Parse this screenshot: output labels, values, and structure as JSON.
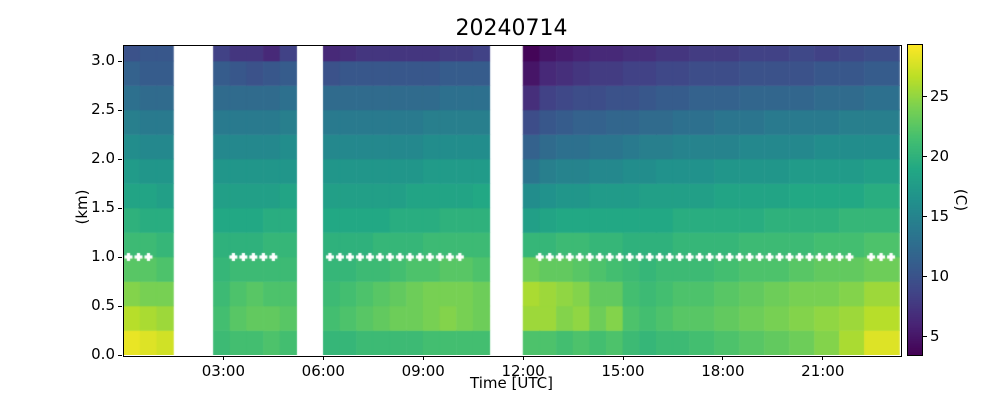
{
  "title": "20240714",
  "axes": {
    "xlabel": "Time [UTC]",
    "ylabel": "(km)",
    "x_ticks": [
      {
        "hour": 3,
        "label": "03:00"
      },
      {
        "hour": 6,
        "label": "06:00"
      },
      {
        "hour": 9,
        "label": "09:00"
      },
      {
        "hour": 12,
        "label": "12:00"
      },
      {
        "hour": 15,
        "label": "15:00"
      },
      {
        "hour": 18,
        "label": "18:00"
      },
      {
        "hour": 21,
        "label": "21:00"
      }
    ],
    "y_ticks": [
      {
        "km": 0.0,
        "label": "0.0"
      },
      {
        "km": 0.5,
        "label": "0.5"
      },
      {
        "km": 1.0,
        "label": "1.0"
      },
      {
        "km": 1.5,
        "label": "1.5"
      },
      {
        "km": 2.0,
        "label": "2.0"
      },
      {
        "km": 2.5,
        "label": "2.5"
      },
      {
        "km": 3.0,
        "label": "3.0"
      }
    ],
    "x_range_hours": [
      0,
      23.3
    ],
    "y_range_km": [
      0,
      3.163
    ]
  },
  "colorbar": {
    "label": "(C)",
    "ticks": [
      {
        "c": 5,
        "label": "5"
      },
      {
        "c": 10,
        "label": "10"
      },
      {
        "c": 15,
        "label": "15"
      },
      {
        "c": 20,
        "label": "20"
      },
      {
        "c": 25,
        "label": "25"
      }
    ],
    "vmin": 3.5,
    "vmax": 29.3,
    "colormap": "viridis",
    "stops": [
      "#440154",
      "#482475",
      "#414487",
      "#355f8d",
      "#2a788e",
      "#21918c",
      "#22a884",
      "#44bf70",
      "#7ad151",
      "#bddf26",
      "#fde725"
    ]
  },
  "chart_data": {
    "type": "heatmap",
    "title": "20240714",
    "xlabel": "Time [UTC]",
    "ylabel": "(km)",
    "value_unit": "C",
    "grid": "off",
    "legend": "colorbar-right",
    "z_bottom_edges_km": [
      0.0,
      0.25,
      0.5,
      0.75,
      1.0,
      1.25,
      1.5,
      1.75,
      2.0,
      2.25,
      2.5,
      2.75,
      3.0
    ],
    "row_height_km": 0.25,
    "z_top_km": 3.163,
    "gaps_hours": [
      [
        1.5,
        2.7
      ],
      [
        5.2,
        6.0
      ],
      [
        11.0,
        12.0
      ]
    ],
    "columns": [
      {
        "t0": 0.0,
        "t1": 0.5,
        "T": [
          28.5,
          26.5,
          24.5,
          22.5,
          21,
          20,
          18.5,
          17.5,
          16,
          14.5,
          13,
          11.5,
          10
        ]
      },
      {
        "t0": 0.5,
        "t1": 1.0,
        "T": [
          28,
          26,
          24,
          22.5,
          21,
          19.5,
          18.5,
          17,
          15.5,
          14,
          12.5,
          11,
          10.5
        ]
      },
      {
        "t0": 1.0,
        "t1": 1.5,
        "T": [
          27.5,
          25.5,
          24,
          22,
          20.5,
          19.5,
          18,
          17,
          15.5,
          14,
          12.5,
          11,
          10.5
        ]
      },
      {
        "t0": 2.7,
        "t1": 3.2,
        "T": [
          21,
          21.5,
          21,
          20.5,
          20,
          19,
          18,
          17,
          15.5,
          14,
          12.5,
          11,
          8.5
        ]
      },
      {
        "t0": 3.2,
        "t1": 3.7,
        "T": [
          21.5,
          22.5,
          22,
          21,
          20,
          19,
          18,
          17,
          15.5,
          14,
          12.5,
          10.5,
          7.5
        ]
      },
      {
        "t0": 3.7,
        "t1": 4.2,
        "T": [
          21.5,
          23,
          22.5,
          21,
          20,
          19,
          18,
          17,
          15.5,
          14,
          12.5,
          10,
          7.5
        ]
      },
      {
        "t0": 4.2,
        "t1": 4.7,
        "T": [
          22,
          23,
          22,
          21,
          20.5,
          19.5,
          18,
          17,
          15.5,
          14,
          12.5,
          10.5,
          6.5
        ]
      },
      {
        "t0": 4.7,
        "t1": 5.2,
        "T": [
          21.5,
          22.5,
          22,
          21,
          20.5,
          19.5,
          18.5,
          17,
          16,
          14.5,
          13,
          11,
          8.5
        ]
      },
      {
        "t0": 6.0,
        "t1": 6.5,
        "T": [
          20.5,
          21.5,
          21,
          20.5,
          20,
          19,
          18,
          17,
          15.5,
          14,
          12.5,
          10,
          6.5
        ]
      },
      {
        "t0": 6.5,
        "t1": 7.0,
        "T": [
          20.5,
          22,
          21.5,
          20.5,
          20,
          19,
          18,
          17,
          15.5,
          14,
          12.5,
          10.5,
          7
        ]
      },
      {
        "t0": 7.0,
        "t1": 7.5,
        "T": [
          21,
          22.5,
          22,
          21,
          20,
          19,
          18,
          17,
          15.5,
          14,
          12.5,
          10.5,
          7.5
        ]
      },
      {
        "t0": 7.5,
        "t1": 8.0,
        "T": [
          21,
          23,
          22.5,
          21,
          20.5,
          19,
          18,
          17,
          15.5,
          14,
          12.5,
          10.5,
          7.5
        ]
      },
      {
        "t0": 8.0,
        "t1": 8.5,
        "T": [
          21,
          23.5,
          23,
          21.5,
          20.5,
          19.5,
          18,
          17,
          15.5,
          14,
          12.5,
          10.5,
          7.5
        ]
      },
      {
        "t0": 8.5,
        "t1": 9.0,
        "T": [
          21,
          23.5,
          23.5,
          22,
          20.5,
          19.5,
          18.5,
          17,
          15.5,
          14,
          12.5,
          10.5,
          7.5
        ]
      },
      {
        "t0": 9.0,
        "t1": 9.5,
        "T": [
          21.5,
          24,
          24,
          22,
          21,
          19.5,
          18.5,
          17.5,
          16,
          14.5,
          12.5,
          10.5,
          7.5
        ]
      },
      {
        "t0": 9.5,
        "t1": 10.0,
        "T": [
          21.5,
          24.5,
          24,
          22.5,
          21,
          20,
          18.5,
          17.5,
          16,
          14.5,
          13,
          11,
          8
        ]
      },
      {
        "t0": 10.0,
        "t1": 10.5,
        "T": [
          21.5,
          24,
          24,
          22.5,
          21,
          20,
          18.5,
          17.5,
          16,
          14.5,
          13,
          11,
          8
        ]
      },
      {
        "t0": 10.5,
        "t1": 11.0,
        "T": [
          21.5,
          23.5,
          23.5,
          22,
          21,
          20,
          19,
          17.5,
          16,
          14.5,
          13,
          11,
          8.5
        ]
      },
      {
        "t0": 12.0,
        "t1": 12.5,
        "T": [
          22,
          25.5,
          26,
          23.5,
          20.5,
          18,
          16,
          13.5,
          11.5,
          9.5,
          7,
          5,
          3.8
        ]
      },
      {
        "t0": 12.5,
        "t1": 13.0,
        "T": [
          22,
          25.5,
          25.5,
          23,
          20.5,
          18.5,
          16.5,
          14.5,
          12.5,
          10.5,
          8.5,
          6.5,
          5
        ]
      },
      {
        "t0": 13.0,
        "t1": 13.5,
        "T": [
          21.5,
          24.5,
          25,
          23,
          21,
          19,
          17,
          15,
          13,
          11,
          9,
          7,
          5.5
        ]
      },
      {
        "t0": 13.5,
        "t1": 14.0,
        "T": [
          22,
          25,
          24.5,
          22.5,
          21,
          19,
          17,
          15,
          13,
          11.5,
          9.5,
          7.5,
          6
        ]
      },
      {
        "t0": 14.0,
        "t1": 14.5,
        "T": [
          21.5,
          23.5,
          23,
          22,
          20.5,
          19,
          17.5,
          15.5,
          13.5,
          11.5,
          9.5,
          8,
          6.5
        ]
      },
      {
        "t0": 14.5,
        "t1": 15.0,
        "T": [
          22,
          24.5,
          23,
          21.5,
          20.5,
          19,
          17.5,
          15.5,
          13.5,
          12,
          10,
          8,
          6.5
        ]
      },
      {
        "t0": 15.0,
        "t1": 15.5,
        "T": [
          21,
          22,
          21.5,
          21,
          20,
          19,
          17.5,
          16,
          14,
          12,
          10,
          8.5,
          7
        ]
      },
      {
        "t0": 15.5,
        "t1": 16.0,
        "T": [
          20.5,
          21.5,
          21,
          20.5,
          20,
          19,
          18,
          16,
          14.5,
          12.5,
          10.5,
          8.5,
          7
        ]
      },
      {
        "t0": 16.0,
        "t1": 16.5,
        "T": [
          21,
          22,
          21.5,
          21,
          20,
          19,
          18,
          16.5,
          14.5,
          12.5,
          11,
          9,
          7.5
        ]
      },
      {
        "t0": 16.5,
        "t1": 17.0,
        "T": [
          21,
          22.5,
          22,
          21,
          20.5,
          19.5,
          18,
          16.5,
          15,
          13,
          11,
          9,
          7.5
        ]
      },
      {
        "t0": 17.0,
        "t1": 17.75,
        "T": [
          21.5,
          22.5,
          22,
          21,
          20.5,
          19.5,
          18,
          16.5,
          15,
          13,
          11.5,
          9.5,
          8
        ]
      },
      {
        "t0": 17.75,
        "t1": 18.5,
        "T": [
          22,
          23,
          22.5,
          21.5,
          20.5,
          19.5,
          18.5,
          17,
          15,
          13.5,
          11.5,
          9.5,
          8
        ]
      },
      {
        "t0": 18.5,
        "t1": 19.25,
        "T": [
          22.5,
          23.5,
          23,
          22,
          21,
          19.5,
          18.5,
          17,
          15.5,
          13.5,
          12,
          10,
          8.5
        ]
      },
      {
        "t0": 19.25,
        "t1": 20.0,
        "T": [
          23,
          24,
          23.5,
          22,
          21,
          20,
          18.5,
          17,
          15.5,
          14,
          12,
          10,
          8.5
        ]
      },
      {
        "t0": 20.0,
        "t1": 20.75,
        "T": [
          23.5,
          24.5,
          24,
          22.5,
          21,
          20,
          19,
          17.5,
          15.5,
          14,
          12,
          10,
          9
        ]
      },
      {
        "t0": 20.75,
        "t1": 21.5,
        "T": [
          24.5,
          25,
          24,
          23,
          21.5,
          20,
          19,
          17.5,
          16,
          14,
          12.5,
          10.5,
          8.5
        ]
      },
      {
        "t0": 21.5,
        "t1": 22.25,
        "T": [
          26,
          25.5,
          24.5,
          23,
          21.5,
          20.5,
          19,
          17.5,
          16,
          14.5,
          12.5,
          10.5,
          9
        ]
      },
      {
        "t0": 22.25,
        "t1": 23.3,
        "T": [
          28,
          26.5,
          25.5,
          23.5,
          22,
          20.5,
          19.5,
          18,
          16,
          14.5,
          13,
          11,
          9.5
        ]
      }
    ],
    "markers": {
      "symbol": "filled-plus",
      "color": "#ffffff",
      "z_km": 1.0,
      "times_hours": [
        0.15,
        0.45,
        0.75,
        3.3,
        3.6,
        3.9,
        4.2,
        4.5,
        6.2,
        6.5,
        6.8,
        7.1,
        7.4,
        7.7,
        8.0,
        8.3,
        8.6,
        8.9,
        9.2,
        9.5,
        9.8,
        10.1,
        12.5,
        12.8,
        13.1,
        13.4,
        13.7,
        14.0,
        14.3,
        14.6,
        14.9,
        15.2,
        15.5,
        15.8,
        16.1,
        16.4,
        16.7,
        17.0,
        17.3,
        17.6,
        17.9,
        18.2,
        18.5,
        18.8,
        19.1,
        19.4,
        19.7,
        20.0,
        20.3,
        20.6,
        20.9,
        21.2,
        21.5,
        21.8,
        22.45,
        22.75,
        23.05
      ]
    }
  }
}
